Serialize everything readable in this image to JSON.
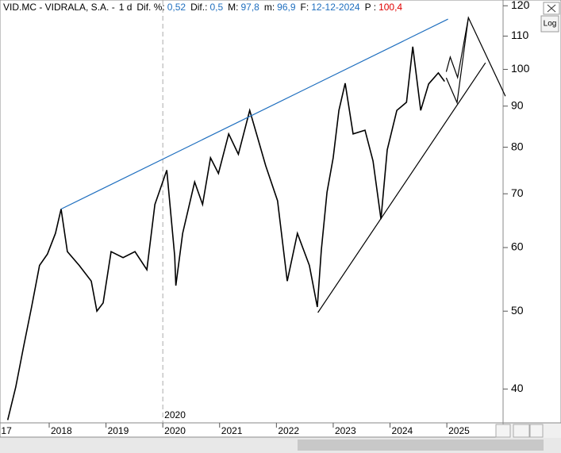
{
  "header": {
    "symbol": "VID.MC - VIDRALA, S.A. -",
    "period": "1 d",
    "fields": [
      {
        "label": "Dif. %:",
        "value": "0,52"
      },
      {
        "label": "Dif.:",
        "value": "0,5"
      },
      {
        "label": "M:",
        "value": "97,8"
      },
      {
        "label": "m:",
        "value": "96,9"
      },
      {
        "label": "F:",
        "value": "12-12-2024"
      },
      {
        "label": "P :",
        "value": "100,4"
      }
    ]
  },
  "log_button": "Log",
  "chart_data": {
    "type": "line",
    "log_scale": true,
    "xlim": [
      2017.134,
      2025.99
    ],
    "ylim": [
      36.3,
      122
    ],
    "xticks": [
      {
        "value": 2017,
        "label": "17"
      },
      2018,
      2019,
      2020,
      2021,
      2022,
      2023,
      2024,
      2025
    ],
    "yticks": [
      40,
      50,
      60,
      70,
      80,
      90,
      100,
      110,
      120
    ],
    "marker": {
      "x": 2020,
      "label": "2020"
    },
    "series": [
      {
        "color": "#000000",
        "x": [
          2017.27,
          2017.41,
          2017.55,
          2017.69,
          2017.83,
          2017.97,
          2018.11,
          2018.21,
          2018.32,
          2018.53,
          2018.74,
          2018.84,
          2018.95,
          2019.09,
          2019.3,
          2019.51,
          2019.72,
          2019.86,
          2020.07,
          2020.21,
          2020.23,
          2020.35,
          2020.56,
          2020.7,
          2020.84,
          2020.98,
          2021.16,
          2021.33,
          2021.53,
          2021.67,
          2021.81,
          2022.02,
          2022.19,
          2022.37,
          2022.58,
          2022.72,
          2022.79,
          2022.89,
          2023.0,
          2023.1,
          2023.21,
          2023.35,
          2023.56,
          2023.7,
          2023.84,
          2023.95,
          2024.12,
          2024.29,
          2024.4,
          2024.54,
          2024.68,
          2024.85,
          2024.96
        ],
        "values": [
          36.6,
          40.2,
          45.2,
          50.6,
          57,
          58.9,
          62.5,
          67,
          59.3,
          57,
          54.5,
          50,
          51.2,
          59.3,
          58.3,
          59.3,
          56.3,
          67.9,
          74.9,
          58.5,
          53.8,
          62.5,
          72.4,
          67.9,
          77.6,
          74.2,
          83.1,
          78.4,
          88.9,
          82.2,
          75.9,
          68.6,
          54.5,
          62.5,
          57,
          50.6,
          59.5,
          70.3,
          77.6,
          88.9,
          96.1,
          83.1,
          84,
          76.9,
          65.1,
          79.4,
          88.9,
          91,
          106.7,
          88.9,
          95.9,
          99,
          96.6
        ]
      }
    ],
    "trendlines": [
      {
        "color": "#1f6fbf",
        "x": [
          2018.21,
          2025.02
        ],
        "values": [
          67,
          115.5
        ]
      },
      {
        "color": "#000000",
        "x": [
          2022.73,
          2025.68
        ],
        "values": [
          49.8,
          101.9
        ]
      },
      {
        "color": "#000000",
        "x": [
          2024.99,
          2025.06,
          2025.19,
          2025.38
        ],
        "values": [
          99.3,
          103.6,
          97.7,
          116
        ]
      },
      {
        "color": "#000000",
        "x": [
          2024.99,
          2025.18,
          2025.38,
          2026.03
        ],
        "values": [
          97.6,
          90.9,
          116,
          92.6
        ]
      }
    ]
  }
}
